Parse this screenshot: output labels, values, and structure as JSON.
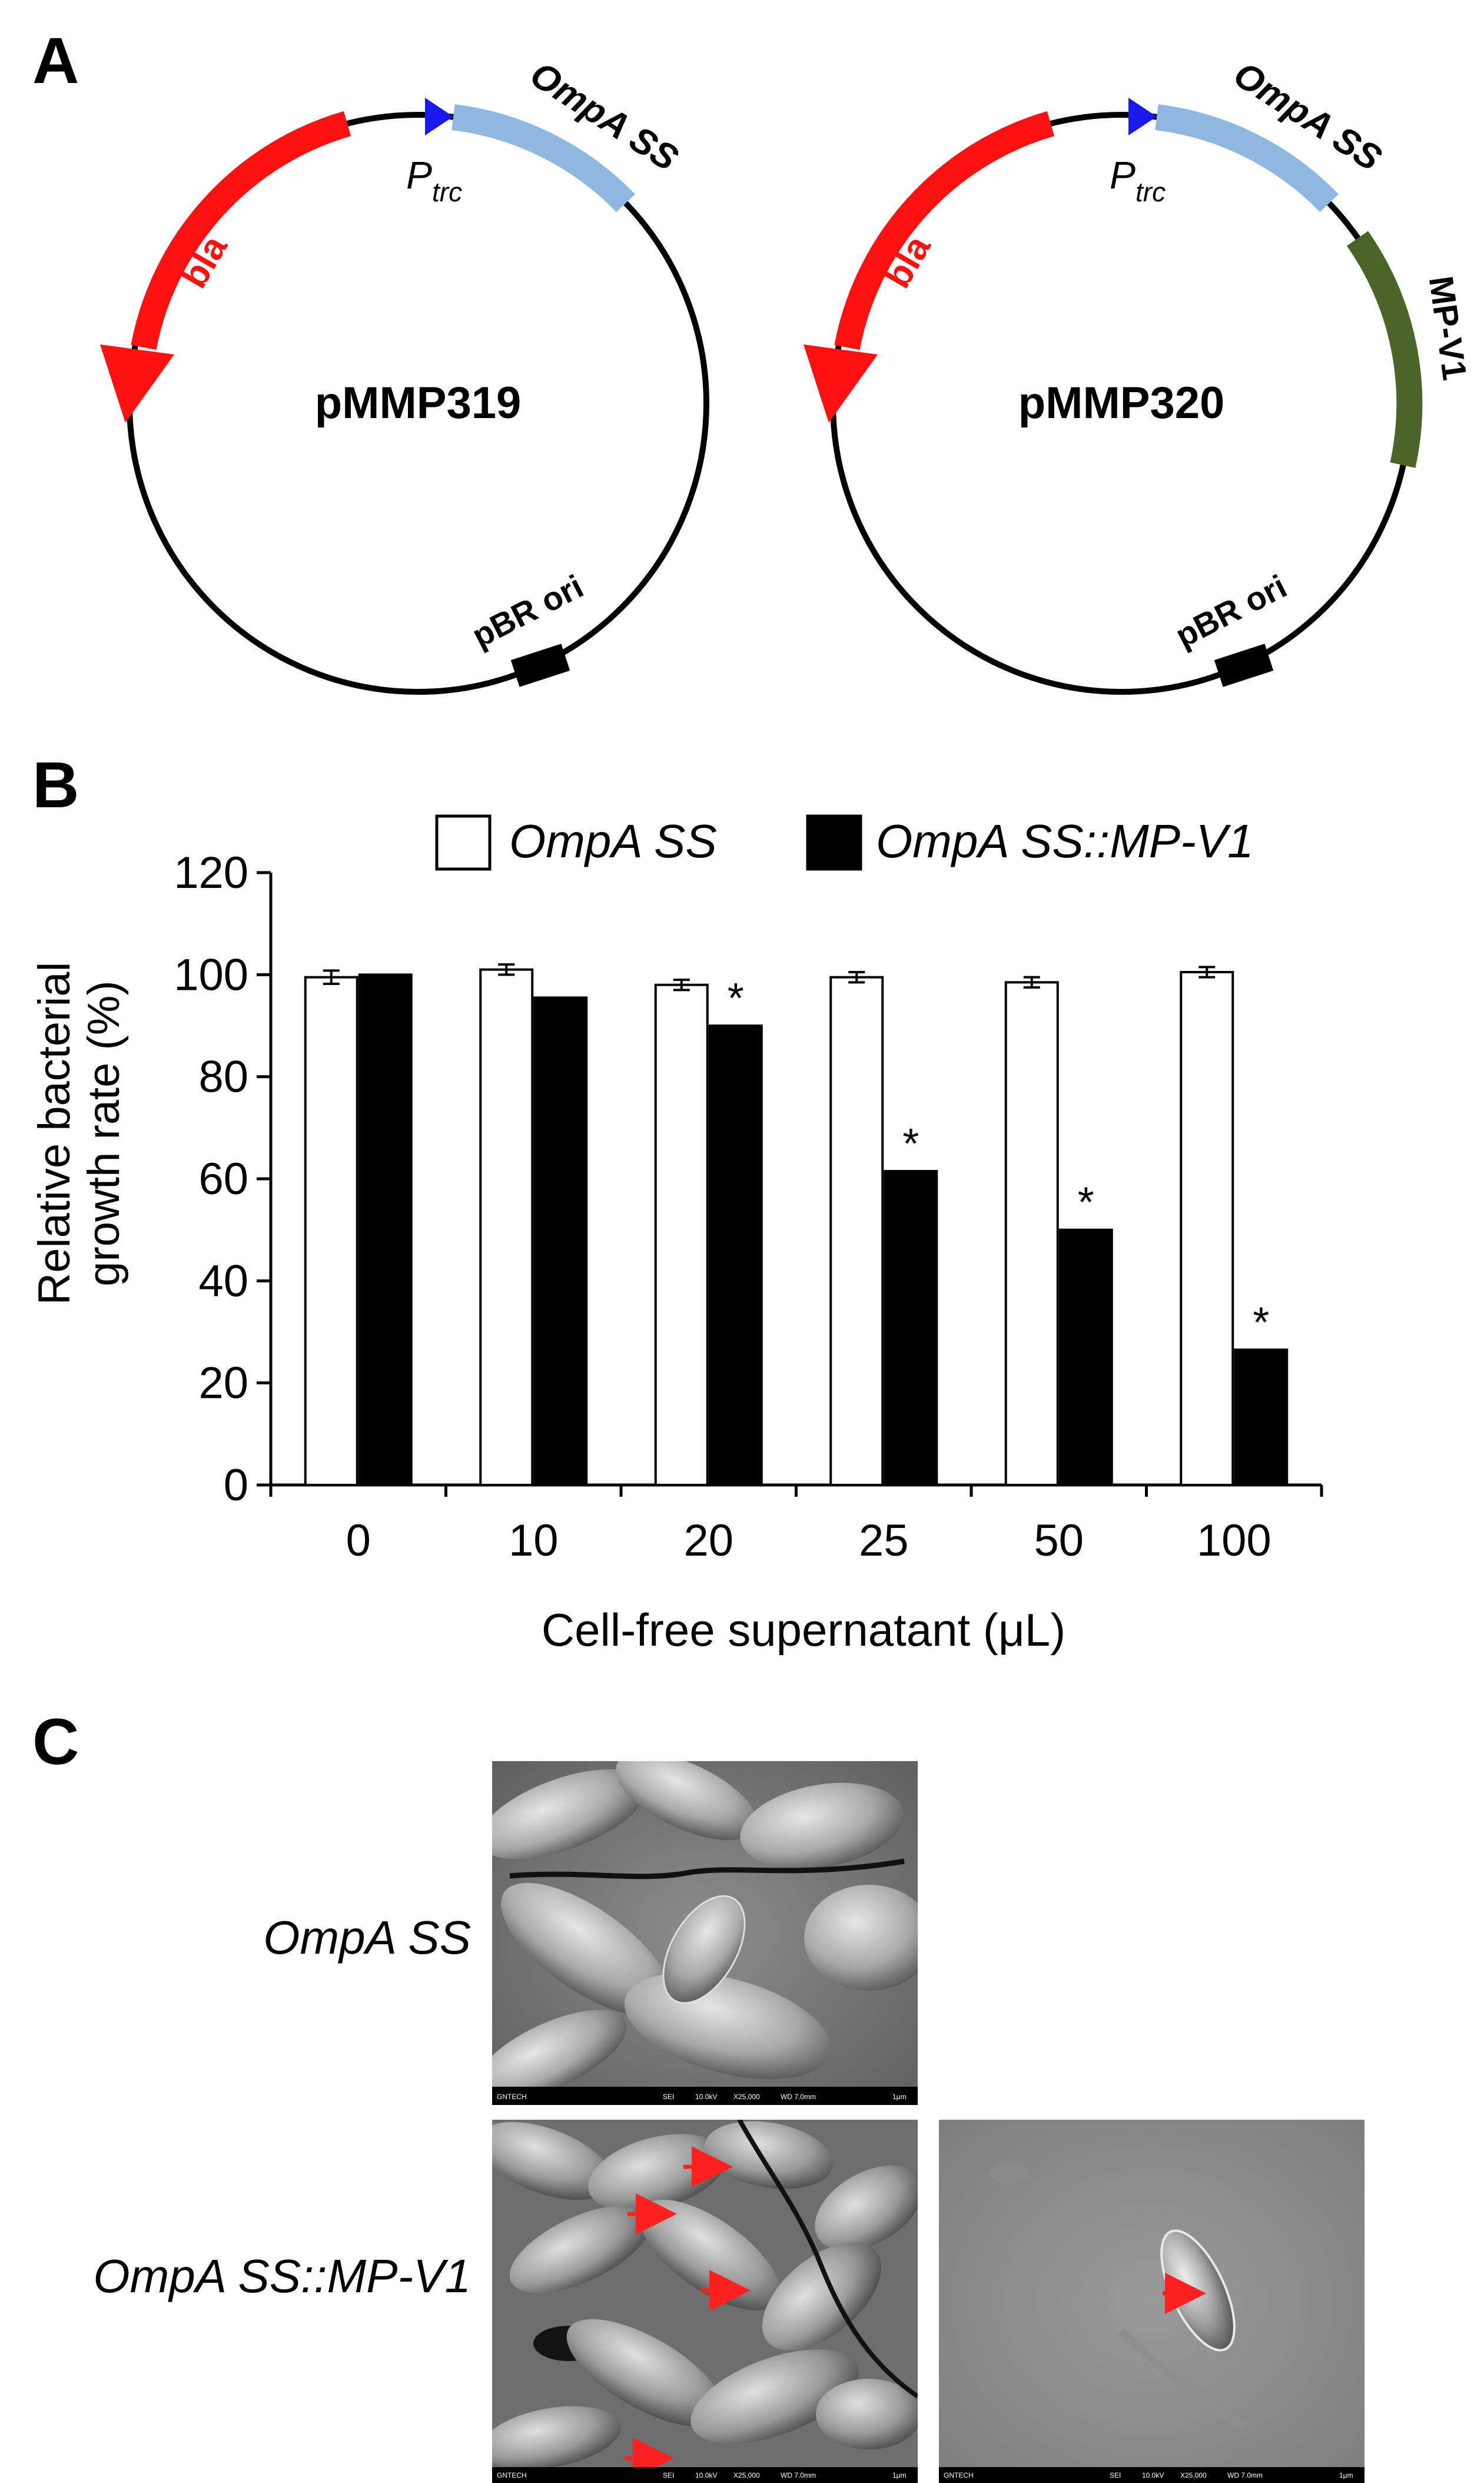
{
  "panels": {
    "a": "A",
    "b": "B",
    "c": "C"
  },
  "plasmids": [
    {
      "name": "pMMP319",
      "bla": "bla",
      "promoter": "P",
      "promoter_sub": "trc",
      "signal": "OmpA SS",
      "insert": "",
      "ori": "pBR ori"
    },
    {
      "name": "pMMP320",
      "bla": "bla",
      "promoter": "P",
      "promoter_sub": "trc",
      "signal": "OmpA SS",
      "insert": "MP-V1",
      "ori": "pBR ori"
    }
  ],
  "plasmid_colors": {
    "bla": "#ff1111",
    "promoter": "#1a1aee",
    "signal": "#8fb8e0",
    "insert": "#4a6527",
    "ori": "#000000",
    "backbone": "#000000"
  },
  "chart_data": {
    "type": "bar",
    "xlabel": "Cell-free supernatant (μL)",
    "ylabel_line1": "Relative bacterial",
    "ylabel_line2": "growth rate (%)",
    "ylim": [
      0,
      120
    ],
    "yticks": [
      "0",
      "20",
      "40",
      "60",
      "80",
      "100",
      "120"
    ],
    "categories": [
      "0",
      "10",
      "20",
      "25",
      "50",
      "100"
    ],
    "legend_position": "top",
    "series": [
      {
        "name": "OmpA SS",
        "fill": "#ffffff",
        "values": [
          99.5,
          101,
          98,
          99.5,
          98.5,
          100.5
        ],
        "errors": [
          1.3,
          1.0,
          1.0,
          1.0,
          1.0,
          1.0
        ],
        "significant": [
          false,
          false,
          false,
          false,
          false,
          false
        ]
      },
      {
        "name": "OmpA SS::MP-V1",
        "fill": "#000000",
        "values": [
          100,
          95.5,
          90,
          61.5,
          50,
          26.5
        ],
        "errors": [
          0,
          0,
          0,
          0,
          0,
          0
        ],
        "significant": [
          false,
          false,
          true,
          true,
          true,
          true
        ]
      }
    ],
    "significance_marker": "*"
  },
  "sem": {
    "row_labels": [
      "OmpA SS",
      "OmpA SS::MP-V1"
    ],
    "footer_text": [
      "GNTECH",
      "SEI",
      "10.0kV",
      "X25,000",
      "WD 7.0mm",
      "1μm"
    ],
    "arrow_color": "#ff2020"
  }
}
